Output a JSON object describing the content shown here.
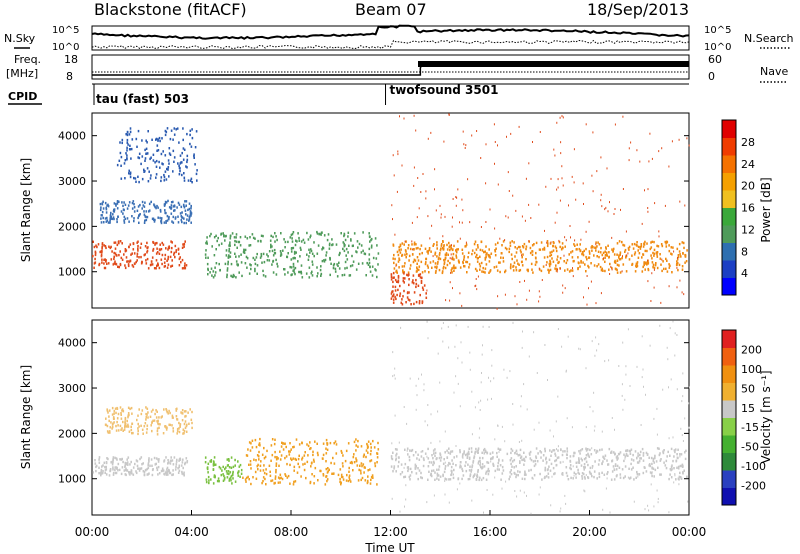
{
  "header": {
    "station": "Blackstone (fitACF)",
    "beam": "Beam 07",
    "date": "18/Sep/2013"
  },
  "noise_panel": {
    "left_label": "N.Sky",
    "right_label": "N.Search",
    "left_ticks": [
      "10^5",
      "10^0"
    ],
    "right_ticks": [
      "10^5",
      "10^0"
    ]
  },
  "freq_panel": {
    "left_label_line1": "Freq.",
    "left_label_line2": "[MHz]",
    "right_label": "Nave",
    "left_ticks": [
      "18",
      "8"
    ],
    "right_ticks": [
      "60",
      "0"
    ]
  },
  "cpid_panel": {
    "label": "CPID",
    "segments": [
      {
        "name": "tau (fast) 503",
        "start_hour": 0.0,
        "end_hour": 11.8
      },
      {
        "name": "twofsound 3501",
        "start_hour": 11.8,
        "end_hour": 24.0
      }
    ]
  },
  "chart_data": [
    {
      "type": "heatmap",
      "title": "Power",
      "ylabel": "Slant Range [km]",
      "ylim": [
        200,
        4500
      ],
      "yticks": [
        "1000",
        "2000",
        "3000",
        "4000"
      ],
      "colorbar_label": "Power [dB]",
      "colorbar_ticks": [
        "4",
        "8",
        "12",
        "16",
        "20",
        "24",
        "28"
      ],
      "colorbar_colors": [
        "#0000ff",
        "#1c3fc4",
        "#2e6fb0",
        "#4f9b5a",
        "#3aa83a",
        "#f0c020",
        "#f5a000",
        "#f57200",
        "#f03c00",
        "#e00000"
      ],
      "scatter_bands": [
        {
          "start_hour": 0.0,
          "end_hour": 3.8,
          "range_km": [
            1100,
            1700
          ],
          "color": "#e04a1a"
        },
        {
          "start_hour": 0.3,
          "end_hour": 4.0,
          "range_km": [
            2100,
            2600
          ],
          "color": "#3a6fb4"
        },
        {
          "start_hour": 1.0,
          "end_hour": 4.2,
          "range_km": [
            3000,
            4200
          ],
          "color": "#2a5ab0"
        },
        {
          "start_hour": 4.5,
          "end_hour": 11.5,
          "range_km": [
            900,
            1900
          ],
          "color": "#4f9b5a"
        },
        {
          "start_hour": 12.0,
          "end_hour": 23.9,
          "range_km": [
            1000,
            1700
          ],
          "color": "#f08a10"
        },
        {
          "start_hour": 12.0,
          "end_hour": 13.5,
          "range_km": [
            300,
            1000
          ],
          "color": "#e04a1a"
        }
      ]
    },
    {
      "type": "heatmap",
      "title": "Velocity",
      "ylabel": "Slant Range [km]",
      "ylim": [
        200,
        4500
      ],
      "yticks": [
        "1000",
        "2000",
        "3000",
        "4000"
      ],
      "colorbar_label": "Velocity [m s⁻¹]",
      "colorbar_ticks": [
        "200",
        "100",
        "50",
        "15",
        "-15",
        "-50",
        "-100",
        "-200"
      ],
      "colorbar_colors": [
        "#1010b0",
        "#2a40c0",
        "#2e8a3a",
        "#44b030",
        "#88d048",
        "#c8c8c8",
        "#f0b030",
        "#f09010",
        "#f06010",
        "#e02020"
      ],
      "scatter_bands": [
        {
          "start_hour": 0.0,
          "end_hour": 3.8,
          "range_km": [
            1100,
            1500
          ],
          "color": "#c8c8c8"
        },
        {
          "start_hour": 0.5,
          "end_hour": 4.0,
          "range_km": [
            2000,
            2600
          ],
          "color": "#f0c070"
        },
        {
          "start_hour": 4.5,
          "end_hour": 6.0,
          "range_km": [
            900,
            1500
          ],
          "color": "#7ac040"
        },
        {
          "start_hour": 6.0,
          "end_hour": 11.5,
          "range_km": [
            900,
            1900
          ],
          "color": "#f0a020"
        },
        {
          "start_hour": 12.0,
          "end_hour": 23.9,
          "range_km": [
            1000,
            1700
          ],
          "color": "#c8c8c8"
        }
      ]
    }
  ],
  "x_axis": {
    "label": "Time UT",
    "ticks": [
      "00:00",
      "04:00",
      "08:00",
      "12:00",
      "16:00",
      "20:00",
      "00:00"
    ]
  },
  "colors": {
    "border": "#000000",
    "background": "#ffffff"
  }
}
